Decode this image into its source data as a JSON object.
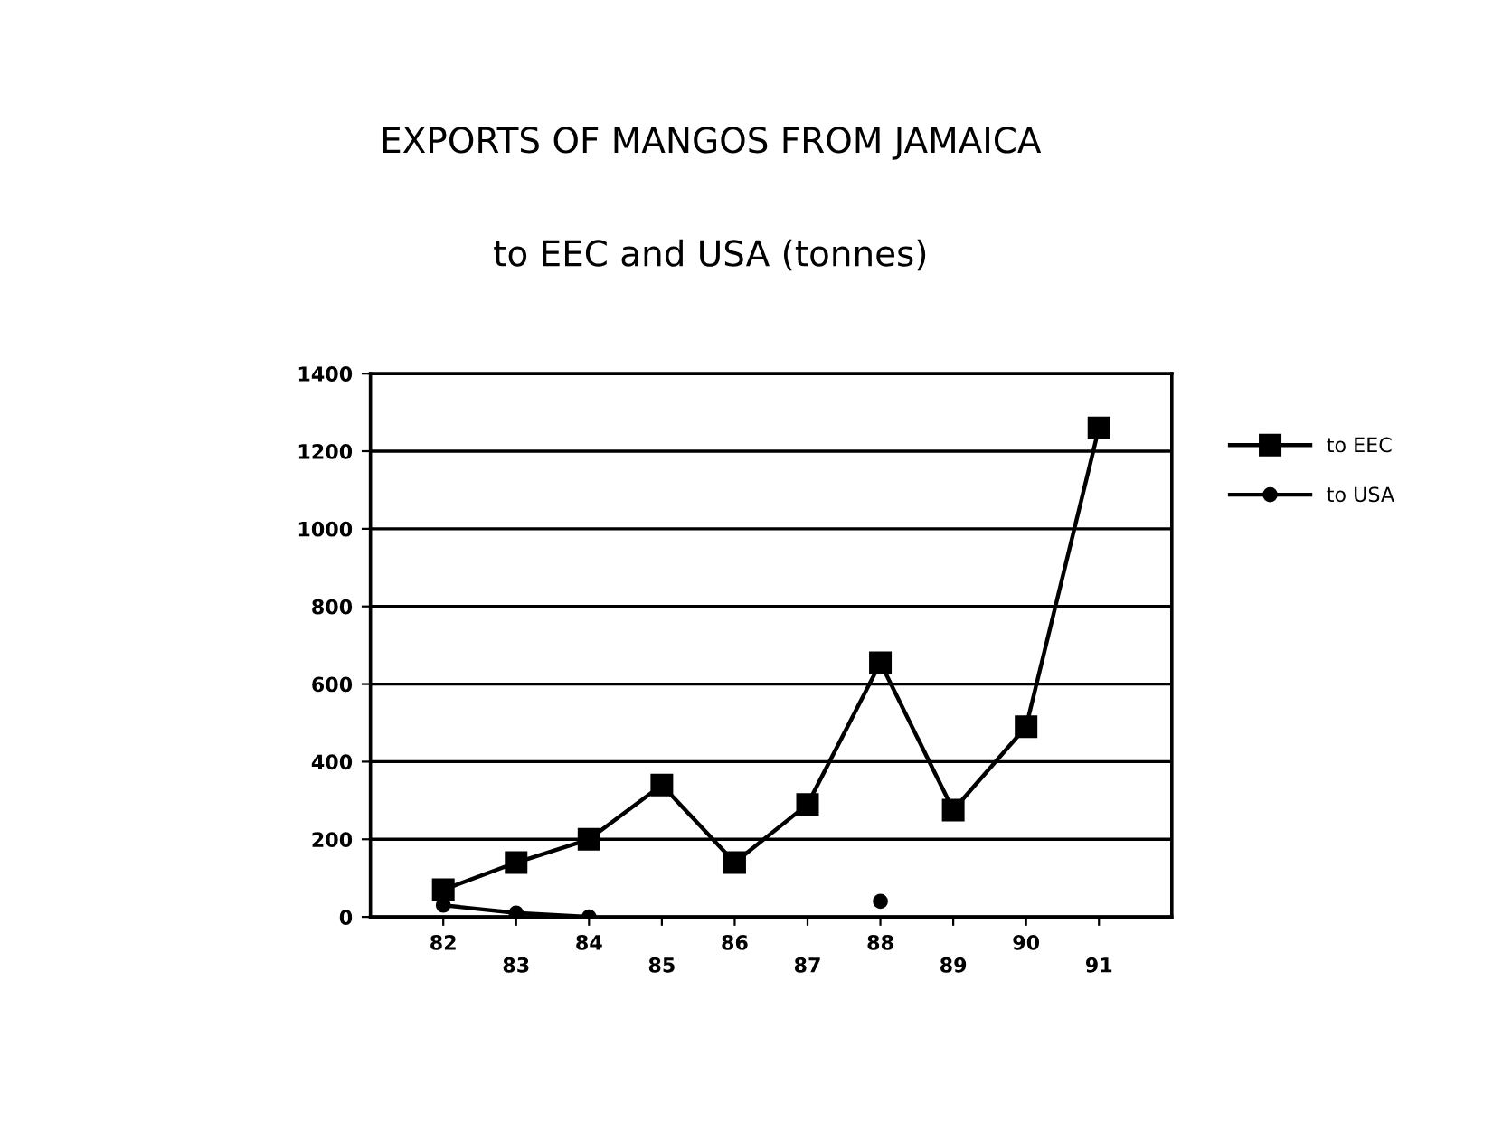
{
  "chart_data": {
    "type": "line",
    "title": "EXPORTS OF MANGOS FROM JAMAICA",
    "subtitle": "to EEC and USA (tonnes)",
    "categories": [
      "82",
      "83",
      "84",
      "85",
      "86",
      "87",
      "88",
      "89",
      "90",
      "91"
    ],
    "series": [
      {
        "name": "to EEC",
        "color": "#000000",
        "marker": "square",
        "values": [
          70,
          140,
          200,
          340,
          140,
          290,
          655,
          275,
          490,
          1260
        ]
      },
      {
        "name": "to USA",
        "color": "#000000",
        "marker": "circle",
        "values": [
          30,
          10,
          0,
          null,
          null,
          null,
          40,
          null,
          null,
          null
        ]
      }
    ],
    "ylim": [
      0,
      1400
    ],
    "yticks": [
      0,
      200,
      400,
      600,
      800,
      1000,
      1200,
      1400
    ],
    "grid": "y",
    "legend": "right",
    "line_style": "solid"
  }
}
